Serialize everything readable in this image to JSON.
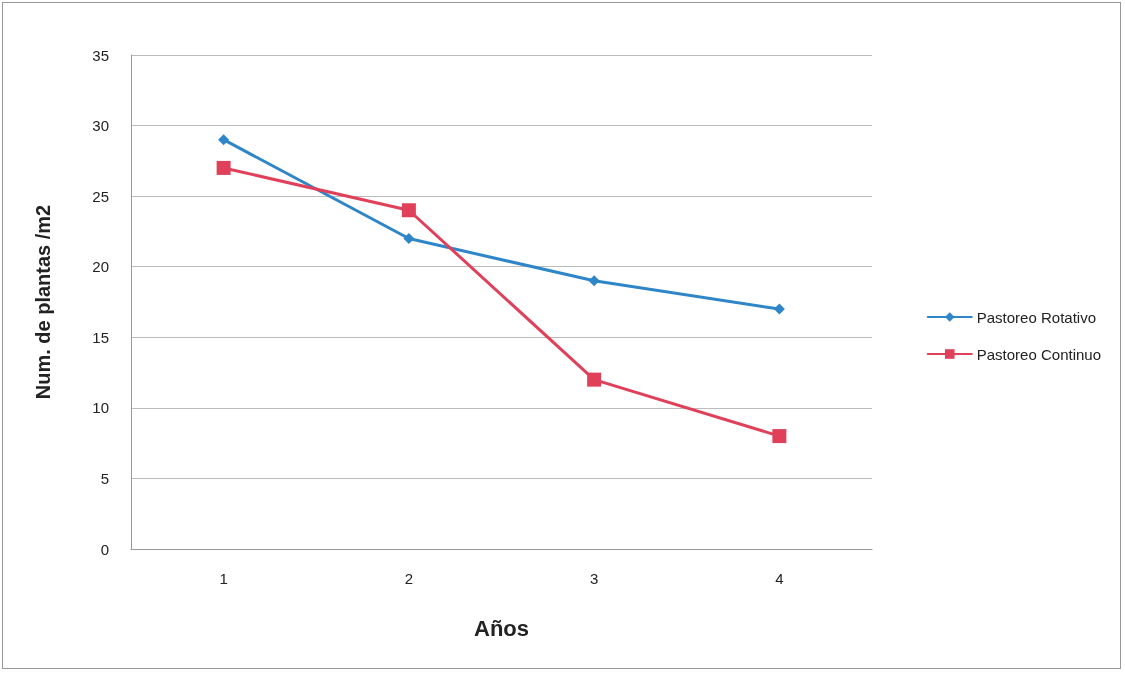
{
  "chart_data": {
    "type": "line",
    "xlabel": "Años",
    "ylabel": "Num. de plantas /m2",
    "categories": [
      "1",
      "2",
      "3",
      "4"
    ],
    "series": [
      {
        "name": "Pastoreo Rotativo",
        "color": "#2e86c8",
        "marker": "diamond",
        "values": [
          29,
          22,
          19,
          17
        ]
      },
      {
        "name": "Pastoreo Continuo",
        "color": "#e0405a",
        "marker": "square",
        "values": [
          27,
          24,
          12,
          8
        ]
      }
    ],
    "ylim": [
      0,
      35
    ],
    "yticks": [
      0,
      5,
      10,
      15,
      20,
      25,
      30,
      35
    ],
    "grid": "y",
    "legend": "right",
    "line_style": "solid"
  }
}
